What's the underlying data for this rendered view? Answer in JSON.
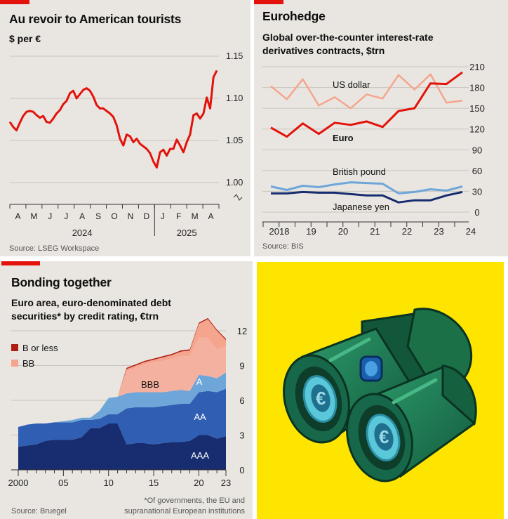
{
  "panels": {
    "p1": {
      "title": "Au revoir to American tourists",
      "subtitle": "$ per €",
      "source": "Source: LSEG Workspace"
    },
    "p2": {
      "title": "Eurohedge",
      "subtitle_line1": "Global over-the-counter interest-rate",
      "subtitle_line2": "derivatives contracts, $trn",
      "source": "Source: BIS"
    },
    "p3": {
      "title": "Bonding together",
      "subtitle_line1": "Euro area, euro-denominated debt",
      "subtitle_line2": "securities* by credit rating, €trn",
      "source": "Source: Bruegel",
      "note_line1": "*Of governments, the EU and",
      "note_line2": "supranational European institutions"
    },
    "p4": {
      "illustration": "binoculars-icon"
    }
  },
  "colors": {
    "red": "#e3120b",
    "pink": "#f5a58e",
    "lightblue": "#6fa6d9",
    "midblue": "#2f5eb3",
    "navy": "#172d6f",
    "bbb": "#f5b1a0",
    "dark_red": "#b01d13",
    "yellow": "#fde500",
    "green": "#1e7a55"
  },
  "chart_data": [
    {
      "type": "line",
      "title": "Au revoir to American tourists",
      "ylabel": "$ per €",
      "ylim": [
        1.0,
        1.15
      ],
      "yticks": [
        "1.15",
        "1.10",
        "1.05",
        "1.00"
      ],
      "xtick_labels": [
        "A",
        "M",
        "J",
        "J",
        "A",
        "S",
        "O",
        "N",
        "D",
        "J",
        "F",
        "M",
        "A"
      ],
      "year_labels": [
        "2024",
        "2025"
      ],
      "series": [
        {
          "name": "$ per €",
          "values": [
            1.072,
            1.066,
            1.062,
            1.071,
            1.079,
            1.084,
            1.085,
            1.084,
            1.08,
            1.077,
            1.079,
            1.072,
            1.071,
            1.076,
            1.082,
            1.086,
            1.093,
            1.097,
            1.106,
            1.109,
            1.1,
            1.105,
            1.11,
            1.112,
            1.109,
            1.102,
            1.092,
            1.088,
            1.088,
            1.085,
            1.082,
            1.078,
            1.068,
            1.052,
            1.044,
            1.057,
            1.055,
            1.048,
            1.052,
            1.046,
            1.043,
            1.04,
            1.035,
            1.025,
            1.018,
            1.036,
            1.039,
            1.032,
            1.04,
            1.04,
            1.051,
            1.044,
            1.036,
            1.048,
            1.057,
            1.08,
            1.082,
            1.076,
            1.082,
            1.101,
            1.088,
            1.125,
            1.133
          ]
        }
      ]
    },
    {
      "type": "line",
      "title": "Eurohedge",
      "ylabel": "Global over-the-counter interest-rate derivatives contracts, $trn",
      "ylim": [
        0,
        210
      ],
      "yticks": [
        "210",
        "180",
        "150",
        "120",
        "90",
        "60",
        "30",
        "0"
      ],
      "xtick_labels": [
        "2018",
        "19",
        "20",
        "21",
        "22",
        "23",
        "24"
      ],
      "series": [
        {
          "name": "US dollar",
          "label": "US dollar",
          "values": [
            182,
            163,
            192,
            154,
            166,
            150,
            170,
            164,
            198,
            177,
            199,
            158,
            161
          ]
        },
        {
          "name": "Euro",
          "label": "Euro",
          "values": [
            122,
            109,
            128,
            113,
            129,
            126,
            131,
            123,
            146,
            150,
            186,
            185,
            202
          ]
        },
        {
          "name": "British pound",
          "label": "British pound",
          "values": [
            37,
            32,
            38,
            36,
            40,
            43,
            42,
            41,
            27,
            29,
            33,
            31,
            37
          ]
        },
        {
          "name": "Japanese yen",
          "label": "Japanese yen",
          "values": [
            27,
            27,
            29,
            28,
            28,
            26,
            24,
            24,
            14,
            17,
            17,
            24,
            29
          ]
        }
      ]
    },
    {
      "type": "area",
      "title": "Bonding together",
      "ylabel": "Euro area, euro-denominated debt securities* by credit rating, €trn",
      "ylim": [
        0,
        12
      ],
      "yticks": [
        "12",
        "9",
        "6",
        "3",
        "0"
      ],
      "xtick_labels": [
        "2000",
        "05",
        "10",
        "15",
        "20",
        "23"
      ],
      "legend": [
        {
          "label": "B or less",
          "color": "#b01d13"
        },
        {
          "label": "BB",
          "color": "#f5a58e"
        }
      ],
      "area_labels": [
        "BBB",
        "A",
        "AA",
        "AAA"
      ],
      "x": [
        2000,
        2001,
        2002,
        2003,
        2004,
        2005,
        2006,
        2007,
        2008,
        2009,
        2010,
        2011,
        2012,
        2013,
        2014,
        2015,
        2016,
        2017,
        2018,
        2019,
        2020,
        2021,
        2022,
        2023
      ],
      "series": [
        {
          "name": "AAA",
          "values": [
            2.0,
            2.1,
            2.2,
            2.5,
            2.6,
            2.6,
            2.6,
            2.8,
            3.6,
            3.6,
            4.0,
            4.0,
            2.2,
            2.3,
            2.3,
            2.2,
            2.3,
            2.4,
            2.4,
            2.5,
            3.0,
            3.0,
            2.7,
            2.9
          ]
        },
        {
          "name": "AA",
          "values": [
            1.7,
            1.8,
            1.8,
            1.5,
            1.5,
            1.5,
            1.5,
            1.5,
            0.7,
            0.8,
            0.8,
            0.8,
            3.1,
            3.1,
            3.1,
            3.2,
            3.2,
            3.2,
            3.3,
            3.2,
            3.7,
            3.8,
            4.0,
            4.1
          ]
        },
        {
          "name": "A",
          "values": [
            0,
            0,
            0,
            0,
            0,
            0.1,
            0.2,
            0.2,
            0.2,
            0.7,
            1.4,
            1.5,
            1.3,
            1.3,
            1.3,
            1.3,
            1.2,
            1.2,
            1.2,
            1.1,
            1.5,
            1.3,
            1.2,
            1.4
          ]
        },
        {
          "name": "BBB",
          "values": [
            0,
            0,
            0,
            0,
            0,
            0,
            0,
            0,
            0,
            0,
            0,
            0,
            1.9,
            2.1,
            2.4,
            2.6,
            2.7,
            2.8,
            2.9,
            3.0,
            3.2,
            3.3,
            2.5,
            2.3
          ]
        },
        {
          "name": "BB",
          "values": [
            0,
            0,
            0,
            0,
            0,
            0,
            0,
            0,
            0,
            0,
            0,
            0,
            0.2,
            0.2,
            0.2,
            0.2,
            0.3,
            0.3,
            0.4,
            0.5,
            1.2,
            1.6,
            1.6,
            0.5
          ]
        },
        {
          "name": "B or less",
          "values": [
            0,
            0,
            0,
            0,
            0,
            0,
            0,
            0,
            0,
            0,
            0,
            0,
            0.1,
            0.1,
            0.1,
            0.1,
            0.1,
            0.1,
            0.1,
            0.1,
            0.1,
            0.1,
            0.1,
            0.1
          ]
        }
      ]
    }
  ]
}
